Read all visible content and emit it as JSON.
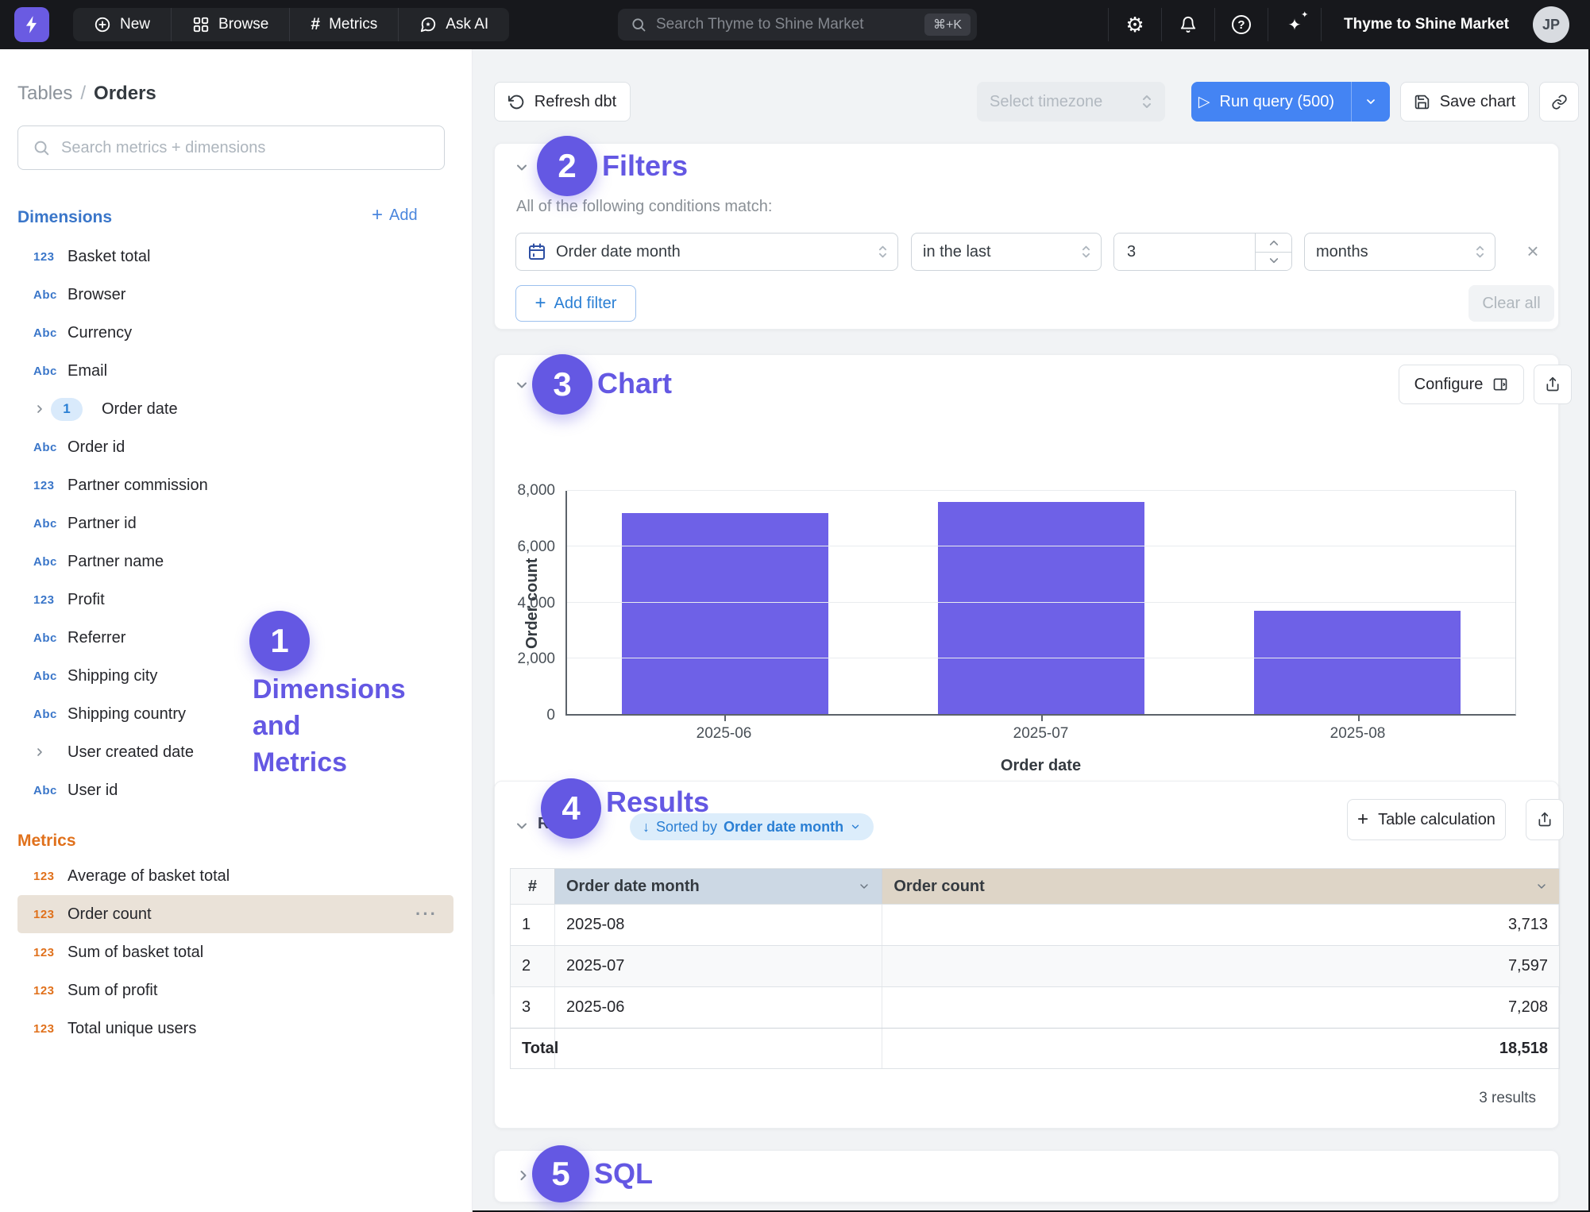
{
  "navbar": {
    "nav_items": [
      {
        "label": "New"
      },
      {
        "label": "Browse"
      },
      {
        "label": "Metrics"
      },
      {
        "label": "Ask AI"
      }
    ],
    "search_placeholder": "Search Thyme to Shine Market",
    "search_shortcut": "⌘+K",
    "org_label": "Thyme to Shine Market",
    "avatar_initials": "JP"
  },
  "sidebar": {
    "breadcrumb": {
      "parent": "Tables",
      "separator": "/",
      "current": "Orders"
    },
    "search_placeholder": "Search metrics + dimensions",
    "dimensions": {
      "title": "Dimensions",
      "add_label": "Add",
      "items": [
        {
          "icon": "123",
          "label": "Basket total"
        },
        {
          "icon": "Abc",
          "label": "Browser"
        },
        {
          "icon": "Abc",
          "label": "Currency"
        },
        {
          "icon": "Abc",
          "label": "Email"
        },
        {
          "chevron": true,
          "badge": "1",
          "label": "Order date"
        },
        {
          "icon": "Abc",
          "label": "Order id"
        },
        {
          "icon": "123",
          "label": "Partner commission"
        },
        {
          "icon": "Abc",
          "label": "Partner id"
        },
        {
          "icon": "Abc",
          "label": "Partner name"
        },
        {
          "icon": "123",
          "label": "Profit"
        },
        {
          "icon": "Abc",
          "label": "Referrer"
        },
        {
          "icon": "Abc",
          "label": "Shipping city"
        },
        {
          "icon": "Abc",
          "label": "Shipping country"
        },
        {
          "chevron": true,
          "label": "User created date"
        },
        {
          "icon": "Abc",
          "label": "User id"
        }
      ]
    },
    "metrics": {
      "title": "Metrics",
      "items": [
        {
          "icon": "123",
          "label": "Average of basket total"
        },
        {
          "icon": "123",
          "label": "Order count",
          "highlighted": true,
          "menu": "···"
        },
        {
          "icon": "123",
          "label": "Sum of basket total"
        },
        {
          "icon": "123",
          "label": "Sum of profit"
        },
        {
          "icon": "123",
          "label": "Total unique users"
        }
      ]
    }
  },
  "toolbar": {
    "refresh_label": "Refresh dbt",
    "timezone_placeholder": "Select timezone",
    "run_label": "Run query (500)",
    "save_label": "Save chart"
  },
  "filters": {
    "title": "Filters",
    "description": "All of the following conditions match:",
    "field": "Order date month",
    "operator": "in the last",
    "value": "3",
    "unit": "months",
    "remove_label": "×",
    "add_filter_label": "Add filter",
    "clear_all_label": "Clear all"
  },
  "chart": {
    "title": "Chart",
    "configure_label": "Configure"
  },
  "chart_data": {
    "type": "bar",
    "categories": [
      "2025-06",
      "2025-07",
      "2025-08"
    ],
    "values": [
      7208,
      7597,
      3713
    ],
    "title": "",
    "xlabel": "Order date",
    "ylabel": "Order count",
    "ylim": [
      0,
      8000
    ],
    "yticks": [
      0,
      2000,
      4000,
      6000,
      8000
    ],
    "grid": true,
    "legend": false,
    "bar_color": "#6e61e7"
  },
  "results": {
    "title": "Results",
    "underlying_title": "Results",
    "sorted_arrow": "↓",
    "sorted_prefix": "Sorted by",
    "sorted_field": "Order date month",
    "table_calculation_label": "Table calculation",
    "row_count_label": "3 results",
    "table": {
      "headers": {
        "index": "#",
        "dimension": "Order date month",
        "metric": "Order count"
      },
      "rows": [
        [
          "1",
          "2025-08",
          "3,713"
        ],
        [
          "2",
          "2025-07",
          "7,597"
        ],
        [
          "3",
          "2025-06",
          "7,208"
        ]
      ],
      "total_label": "Total",
      "total_value": "18,518"
    }
  },
  "sql": {
    "title": "SQL"
  },
  "annotations": {
    "one": {
      "number": "1",
      "lines": [
        "Dimensions",
        "and",
        "Metrics"
      ]
    },
    "two": "2",
    "three": "3",
    "four": "4",
    "five": "5"
  },
  "colors": {
    "accent_purple": "#6458e3",
    "accent_blue": "#4484f3",
    "dimension_blue": "#3a76c9",
    "metric_orange": "#e0711c",
    "bar_purple": "#6e61e7",
    "highlight_tan": "#eae2d8",
    "dim_header_bg": "#ccd8e4",
    "metric_header_bg": "#ded5c7",
    "navbar_bg": "#17181c"
  }
}
